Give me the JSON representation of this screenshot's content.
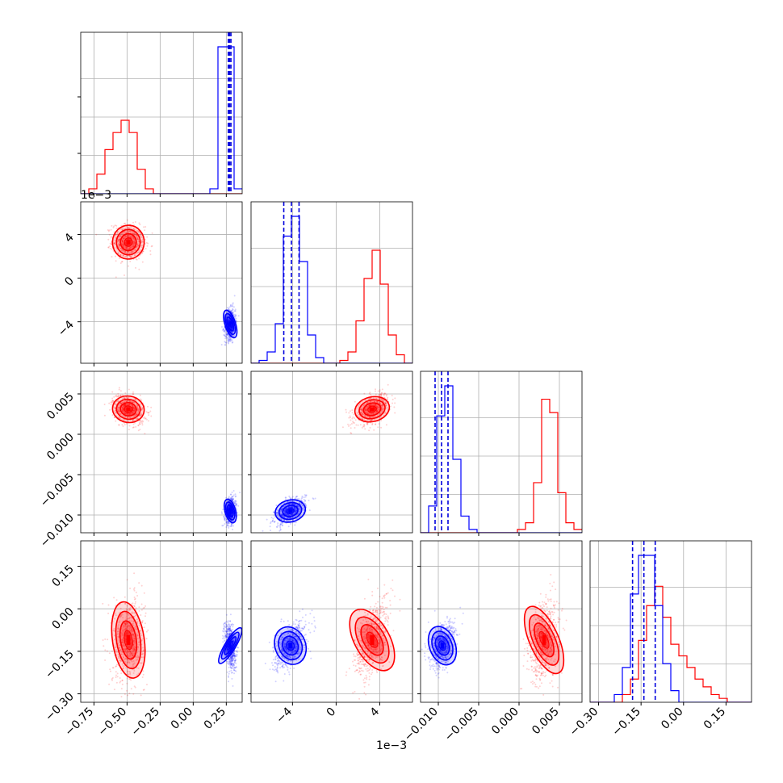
{
  "chart_data": {
    "type": "corner",
    "title": "",
    "grid": true,
    "legend": "none",
    "parameters": [
      "",
      "",
      "",
      ""
    ],
    "series": [
      {
        "name": "",
        "color": "#ff0000",
        "mean": [
          -0.49,
          0.0033,
          0.0031,
          -0.11
        ],
        "sd": [
          0.06,
          0.0008,
          0.0009,
          0.07
        ]
      },
      {
        "name": "",
        "color": "#0000ff",
        "mean": [
          0.28,
          -0.0042,
          -0.0095,
          -0.13
        ],
        "sd": [
          0.02,
          0.0007,
          0.0008,
          0.04
        ],
        "quantiles": [
          [
            0.265,
            0.275,
            0.285
          ],
          [
            -0.0048,
            -0.0041,
            -0.0034
          ],
          [
            -0.0104,
            -0.0096,
            -0.0088
          ],
          [
            -0.18,
            -0.14,
            -0.1
          ]
        ]
      }
    ],
    "axes": [
      {
        "range": [
          -0.85,
          0.37
        ],
        "ticks": [
          -0.75,
          -0.5,
          -0.25,
          0.0,
          0.25
        ],
        "tick_labels": [
          "−0.75",
          "−0.50",
          "−0.25",
          "0.00",
          "0.25"
        ],
        "offset_label": ""
      },
      {
        "range": [
          -0.0078,
          0.007
        ],
        "ticks": [
          -0.004,
          0.0,
          0.004
        ],
        "tick_labels": [
          "−4",
          "0",
          "4"
        ],
        "offset_label": "1e−3"
      },
      {
        "range": [
          -0.0122,
          0.0078
        ],
        "ticks": [
          -0.01,
          -0.005,
          0.0,
          0.005
        ],
        "tick_labels": [
          "−0.010",
          "−0.005",
          "0.000",
          "0.005"
        ],
        "offset_label": ""
      },
      {
        "range": [
          -0.33,
          0.24
        ],
        "ticks": [
          -0.3,
          -0.15,
          0.0,
          0.15
        ],
        "tick_labels": [
          "−0.30",
          "−0.15",
          "0.00",
          "0.15"
        ],
        "offset_label": ""
      }
    ],
    "histograms": [
      {
        "bins": [
          -0.85,
          0.37
        ],
        "red": [
          0,
          2,
          8,
          18,
          25,
          30,
          25,
          10,
          2,
          0,
          0,
          0,
          0,
          0,
          0,
          0,
          0,
          0,
          0,
          0
        ],
        "blue": [
          0,
          0,
          0,
          0,
          0,
          0,
          0,
          0,
          0,
          0,
          0,
          0,
          0,
          0,
          0,
          0,
          2,
          60,
          60,
          2
        ]
      },
      {
        "bins": [
          -0.0078,
          0.007
        ],
        "red": [
          0,
          0,
          0,
          0,
          0,
          0,
          0,
          0,
          0,
          0,
          0,
          1,
          4,
          15,
          30,
          40,
          28,
          10,
          3,
          0
        ],
        "blue": [
          0,
          1,
          4,
          14,
          45,
          52,
          36,
          10,
          2,
          0,
          0,
          0,
          0,
          0,
          0,
          0,
          0,
          0,
          0,
          0
        ]
      },
      {
        "bins": [
          -0.0122,
          0.0078
        ],
        "red": [
          0,
          0,
          0,
          0,
          0,
          0,
          0,
          0,
          0,
          0,
          0,
          0,
          1,
          3,
          15,
          40,
          36,
          12,
          3,
          1
        ],
        "blue": [
          0,
          8,
          35,
          44,
          22,
          5,
          1,
          0,
          0,
          0,
          0,
          0,
          0,
          0,
          0,
          0,
          0,
          0,
          0,
          0
        ]
      },
      {
        "bins": [
          -0.33,
          0.24
        ],
        "red": [
          0,
          0,
          0,
          0,
          2,
          6,
          16,
          25,
          30,
          22,
          15,
          12,
          9,
          6,
          4,
          2,
          1,
          0,
          0,
          0
        ],
        "blue": [
          0,
          0,
          0,
          2,
          9,
          28,
          38,
          38,
          25,
          10,
          3,
          0,
          0,
          0,
          0,
          0,
          0,
          0,
          0,
          0
        ]
      }
    ]
  }
}
